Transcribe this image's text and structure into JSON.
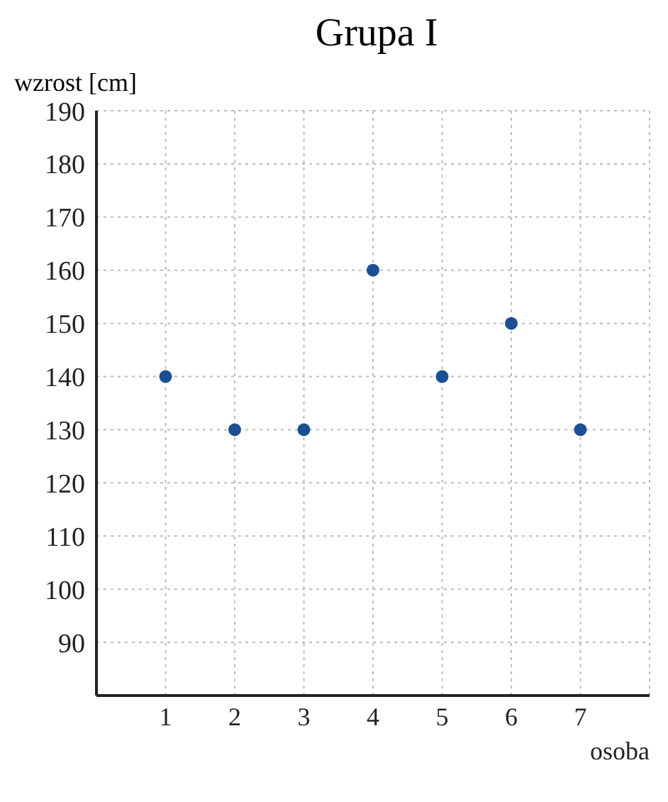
{
  "chart_data": {
    "type": "scatter",
    "title": "Grupa I",
    "xlabel": "osoba",
    "ylabel": "wzrost [cm]",
    "x": [
      1,
      2,
      3,
      4,
      5,
      6,
      7
    ],
    "series": [
      {
        "color": "#1a4f96",
        "values": [
          140,
          130,
          130,
          160,
          140,
          150,
          130
        ]
      }
    ],
    "xlim": [
      0,
      8
    ],
    "xticks": [
      1,
      2,
      3,
      4,
      5,
      6,
      7
    ],
    "ylim": [
      80,
      190
    ],
    "yticks": [
      90,
      100,
      110,
      120,
      130,
      140,
      150,
      160,
      170,
      180,
      190
    ],
    "grid": true,
    "marker": "circle",
    "legend": false
  }
}
